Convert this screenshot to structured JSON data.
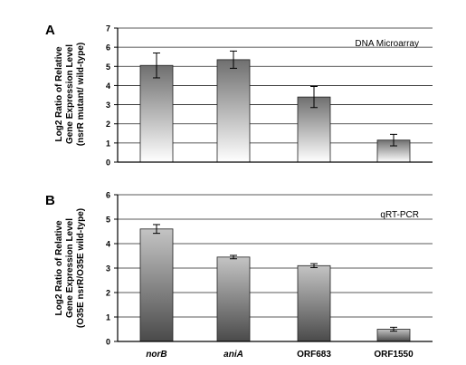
{
  "chart_data": [
    {
      "type": "bar",
      "panel_letter": "A",
      "annotation": "DNA Microarray",
      "ylabel_lines": [
        "Log2 Ratio of Relative",
        "Gene Expression Level",
        "(nsrR mutant/ wild-type)"
      ],
      "categories": [
        "norB",
        "aniA",
        "ORF683",
        "ORF1550"
      ],
      "values": [
        5.05,
        5.35,
        3.4,
        1.15
      ],
      "errors": [
        0.65,
        0.45,
        0.55,
        0.3
      ],
      "ylim": [
        0,
        7
      ],
      "yticks": [
        0,
        1,
        2,
        3,
        4,
        5,
        6,
        7
      ],
      "grid": true
    },
    {
      "type": "bar",
      "panel_letter": "B",
      "annotation": "qRT-PCR",
      "ylabel_lines": [
        "Log2 Ratio of Relative",
        "Gene Expression Level",
        "(O35E nsrR/O35E wild-type)"
      ],
      "categories": [
        "norB",
        "aniA",
        "ORF683",
        "ORF1550"
      ],
      "values": [
        4.6,
        3.45,
        3.1,
        0.5
      ],
      "errors": [
        0.18,
        0.07,
        0.08,
        0.08
      ],
      "ylim": [
        0,
        6
      ],
      "yticks": [
        0,
        1,
        2,
        3,
        4,
        5,
        6
      ],
      "grid": true
    }
  ],
  "x_tick_labels": [
    "norB",
    "aniA",
    "ORF683",
    "ORF1550"
  ]
}
